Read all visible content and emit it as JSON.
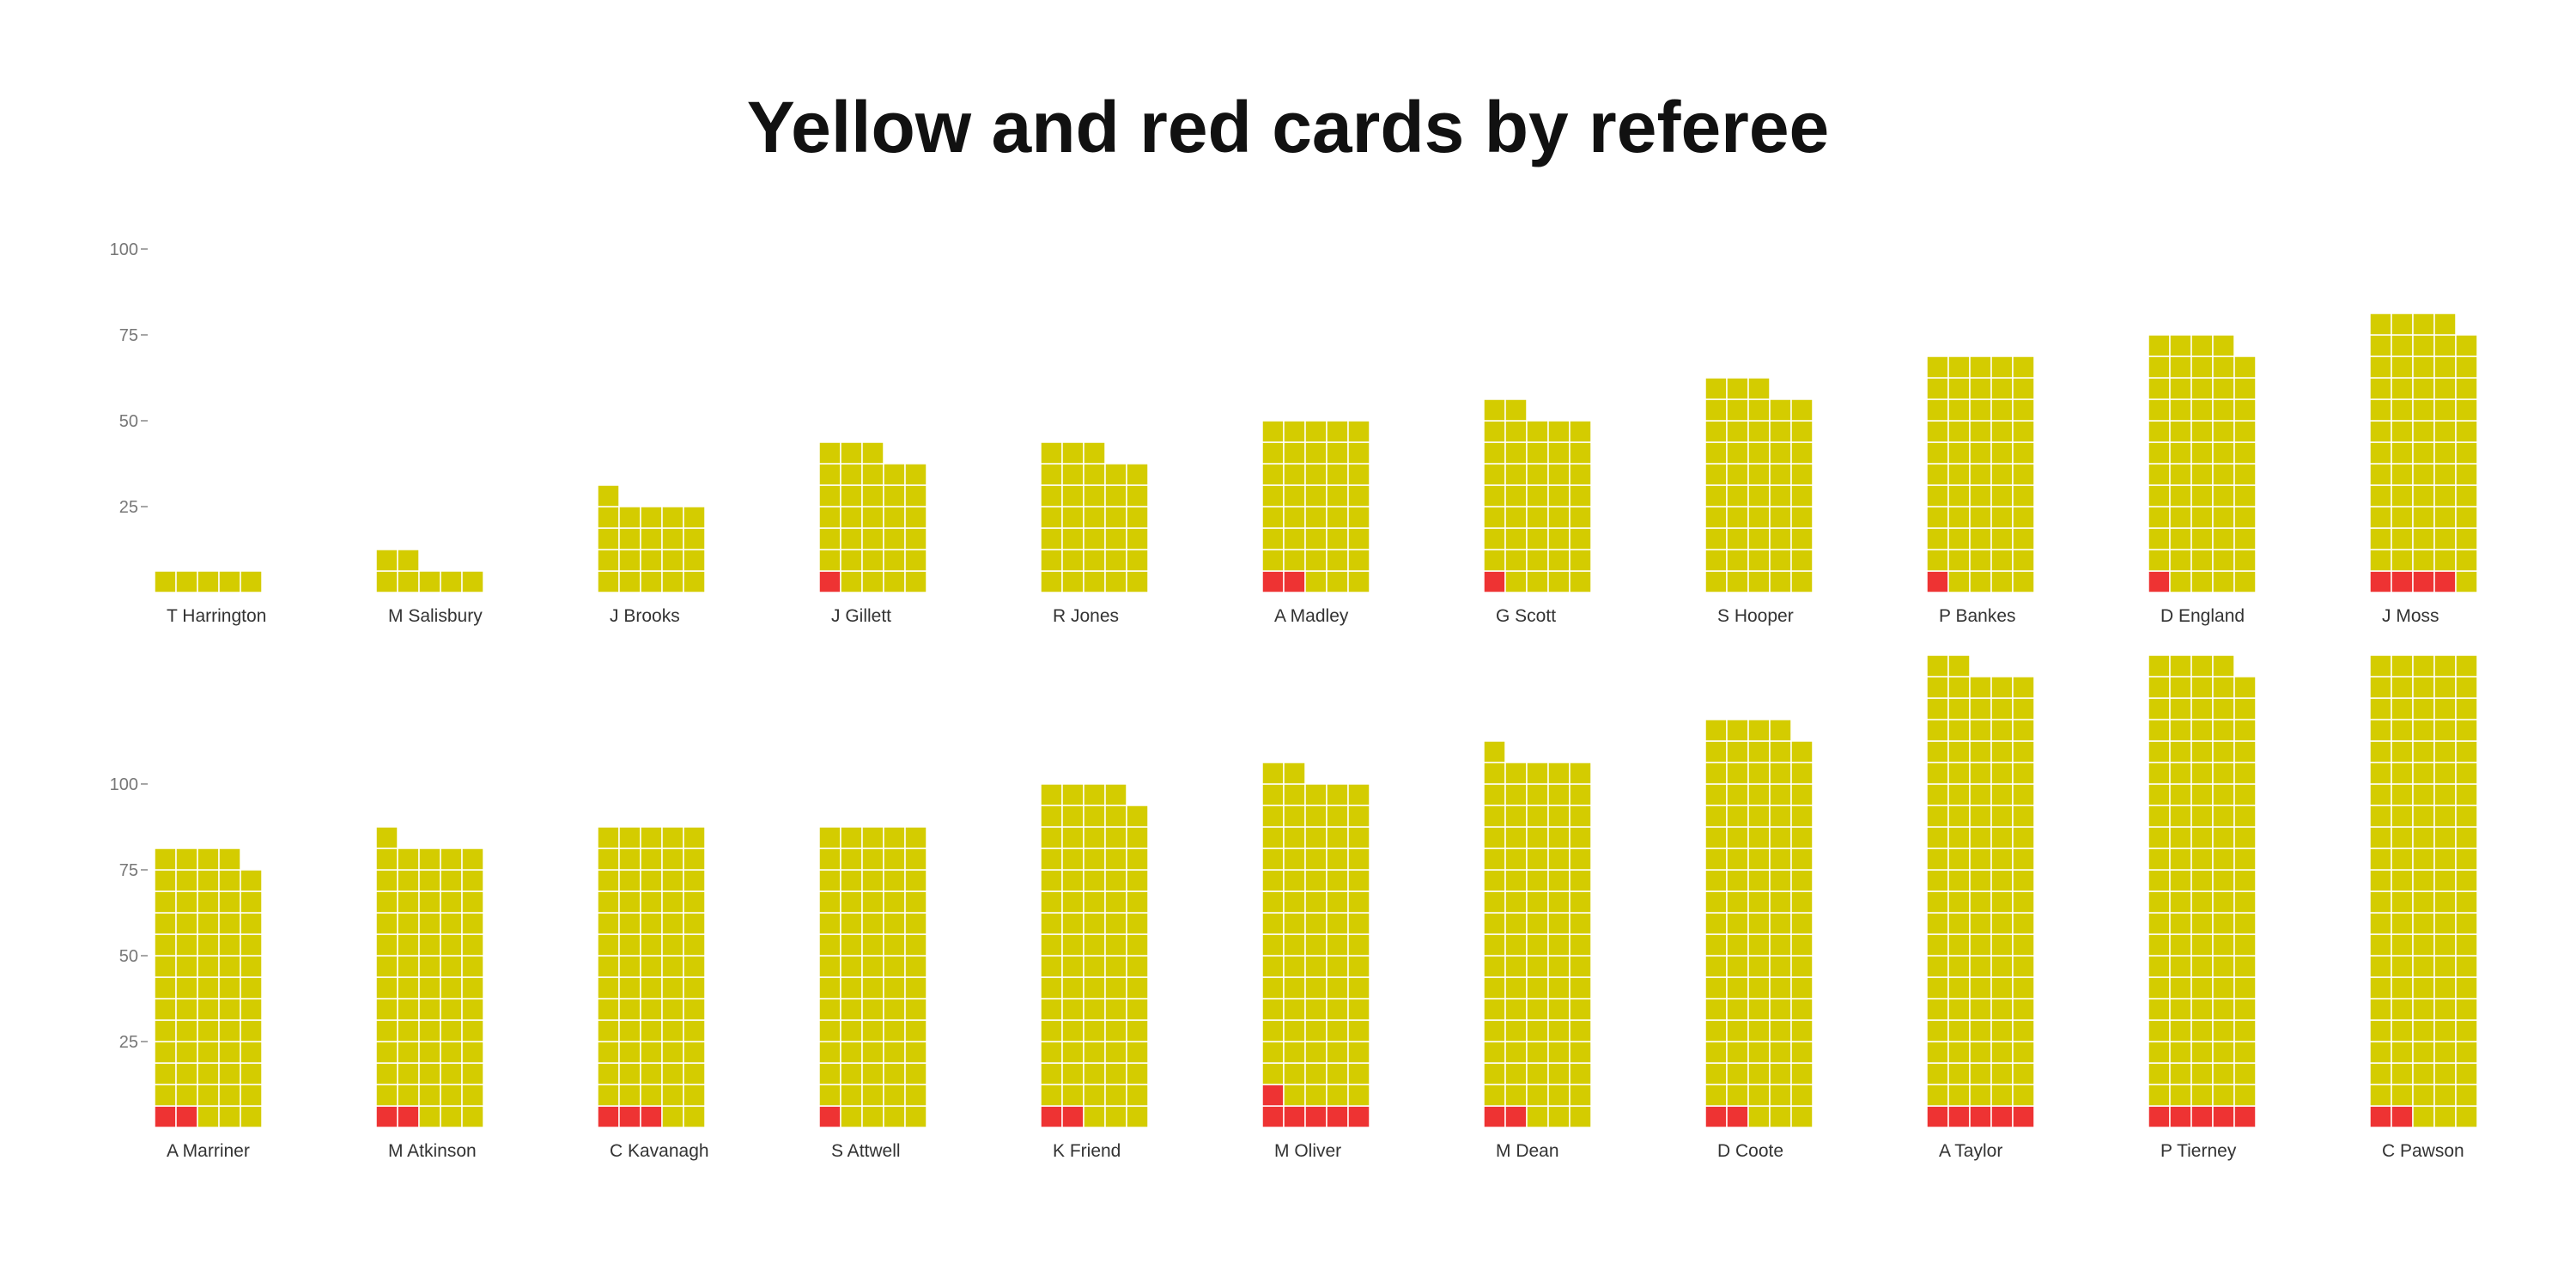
{
  "chart_data": {
    "type": "bar",
    "subtype": "waffle-column",
    "title": "Yellow and red cards by referee",
    "unit_per_square": 5,
    "squares_per_row": 5,
    "colors": {
      "yellow": "#d4cc00",
      "red": "#ee3333",
      "grid": "#ffffff",
      "axis": "#888888"
    },
    "series_keys": [
      "yellow",
      "red"
    ],
    "panels": [
      {
        "y_ticks": [
          25,
          50,
          75,
          100
        ],
        "ylim": [
          0,
          100
        ],
        "referees": [
          {
            "name": "T Harrington",
            "yellow": 25,
            "red": 0
          },
          {
            "name": "M Salisbury",
            "yellow": 35,
            "red": 0
          },
          {
            "name": "J Brooks",
            "yellow": 105,
            "red": 0
          },
          {
            "name": "J Gillett",
            "yellow": 160,
            "red": 5
          },
          {
            "name": "R Jones",
            "yellow": 165,
            "red": 0
          },
          {
            "name": "A Madley",
            "yellow": 190,
            "red": 10
          },
          {
            "name": "G Scott",
            "yellow": 205,
            "red": 5
          },
          {
            "name": "S Hooper",
            "yellow": 240,
            "red": 0
          },
          {
            "name": "P Bankes",
            "yellow": 270,
            "red": 5
          },
          {
            "name": "D England",
            "yellow": 290,
            "red": 5
          },
          {
            "name": "J Moss",
            "yellow": 300,
            "red": 20
          }
        ]
      },
      {
        "y_ticks": [
          25,
          50,
          75,
          100
        ],
        "ylim": [
          0,
          100
        ],
        "referees": [
          {
            "name": "A Marriner",
            "yellow": 310,
            "red": 10
          },
          {
            "name": "M Atkinson",
            "yellow": 320,
            "red": 10
          },
          {
            "name": "C Kavanagh",
            "yellow": 335,
            "red": 15
          },
          {
            "name": "S Attwell",
            "yellow": 345,
            "red": 5
          },
          {
            "name": "K Friend",
            "yellow": 385,
            "red": 10
          },
          {
            "name": "M Oliver",
            "yellow": 380,
            "red": 30
          },
          {
            "name": "M Dean",
            "yellow": 420,
            "red": 10
          },
          {
            "name": "D Coote",
            "yellow": 460,
            "red": 10
          },
          {
            "name": "A Taylor",
            "yellow": 510,
            "red": 25
          },
          {
            "name": "P Tierney",
            "yellow": 520,
            "red": 25
          },
          {
            "name": "C Pawson",
            "yellow": 540,
            "red": 10
          }
        ]
      }
    ]
  }
}
